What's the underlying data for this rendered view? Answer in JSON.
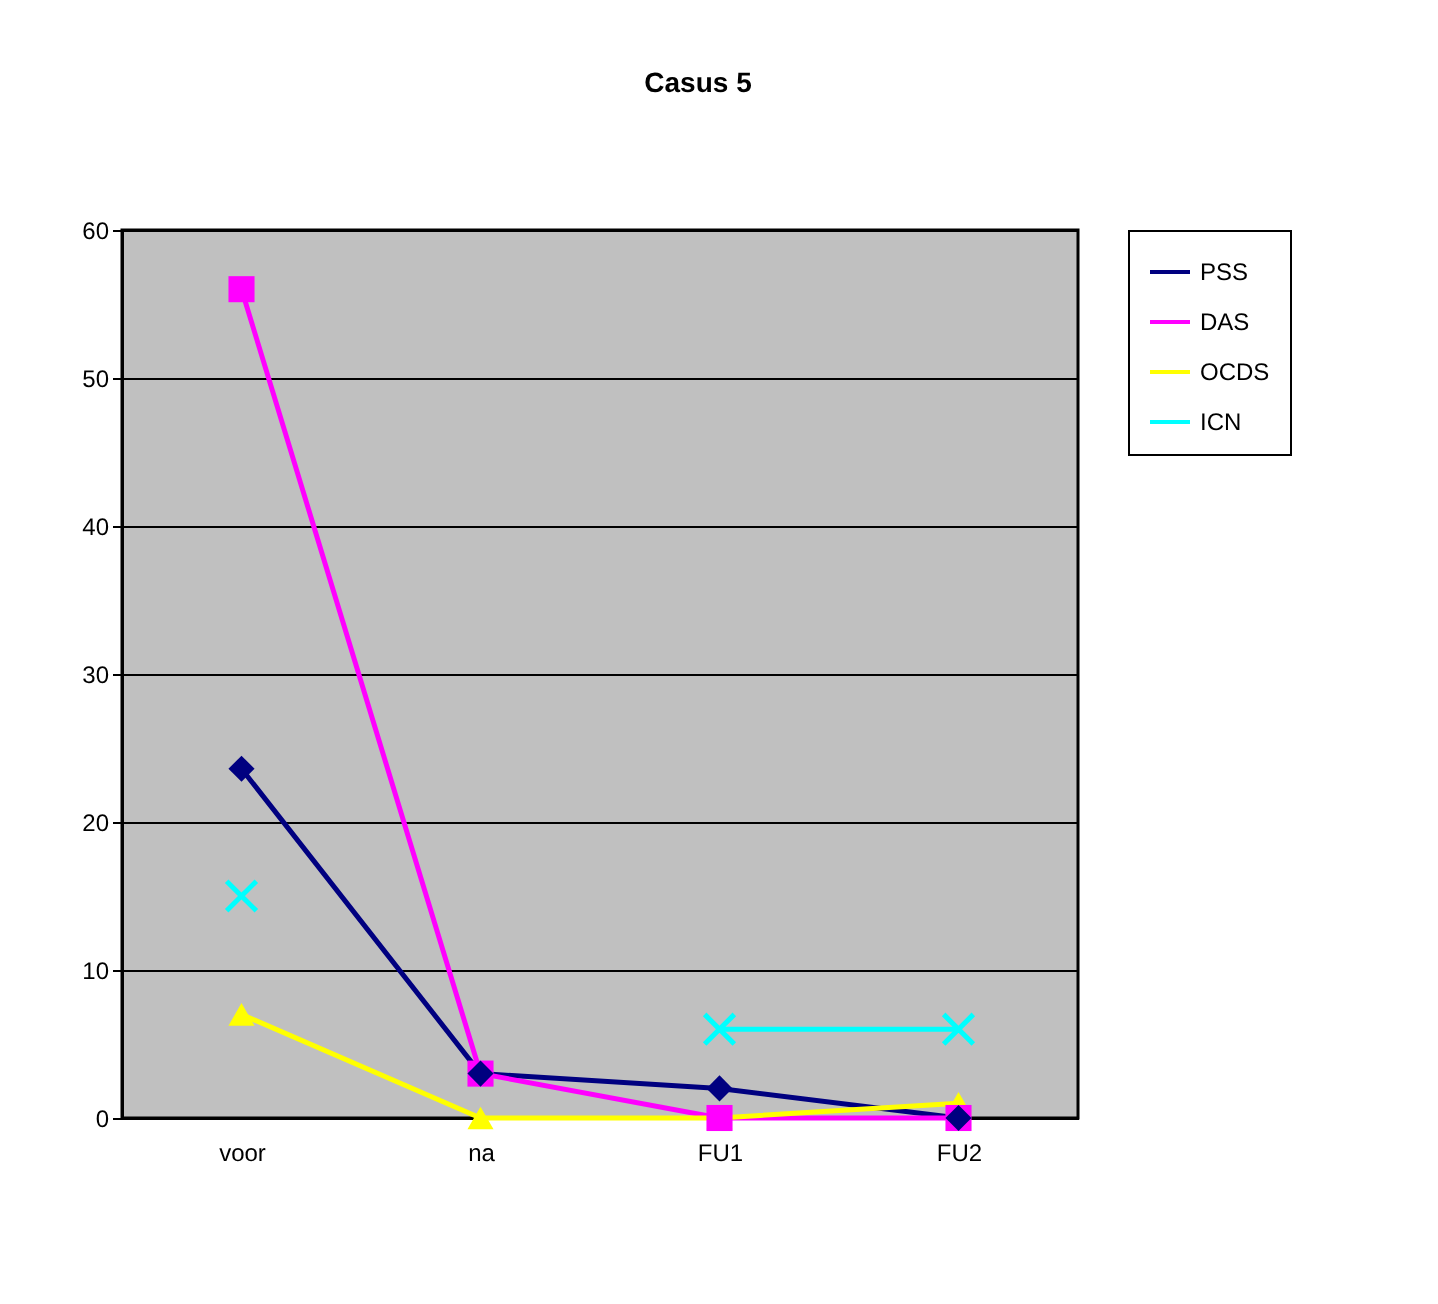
{
  "chart_data": {
    "type": "line",
    "title": "Casus 5",
    "categories": [
      "voor",
      "na",
      "FU1",
      "FU2"
    ],
    "series": [
      {
        "name": "PSS",
        "color": "#000080",
        "marker": "diamond",
        "values": [
          23.6,
          3,
          2,
          0
        ]
      },
      {
        "name": "DAS",
        "color": "#ff00ff",
        "marker": "square",
        "values": [
          56,
          3,
          0,
          0
        ]
      },
      {
        "name": "OCDS",
        "color": "#ffff00",
        "marker": "triangle",
        "values": [
          7,
          0,
          0,
          1
        ]
      },
      {
        "name": "ICN",
        "color": "#00ffff",
        "marker": "cross",
        "values": [
          15,
          null,
          6,
          6
        ]
      }
    ],
    "ylim": [
      0,
      60
    ],
    "yticks": [
      0,
      10,
      20,
      30,
      40,
      50,
      60
    ],
    "grid": "y",
    "legend": "right",
    "line_style": "solid"
  }
}
